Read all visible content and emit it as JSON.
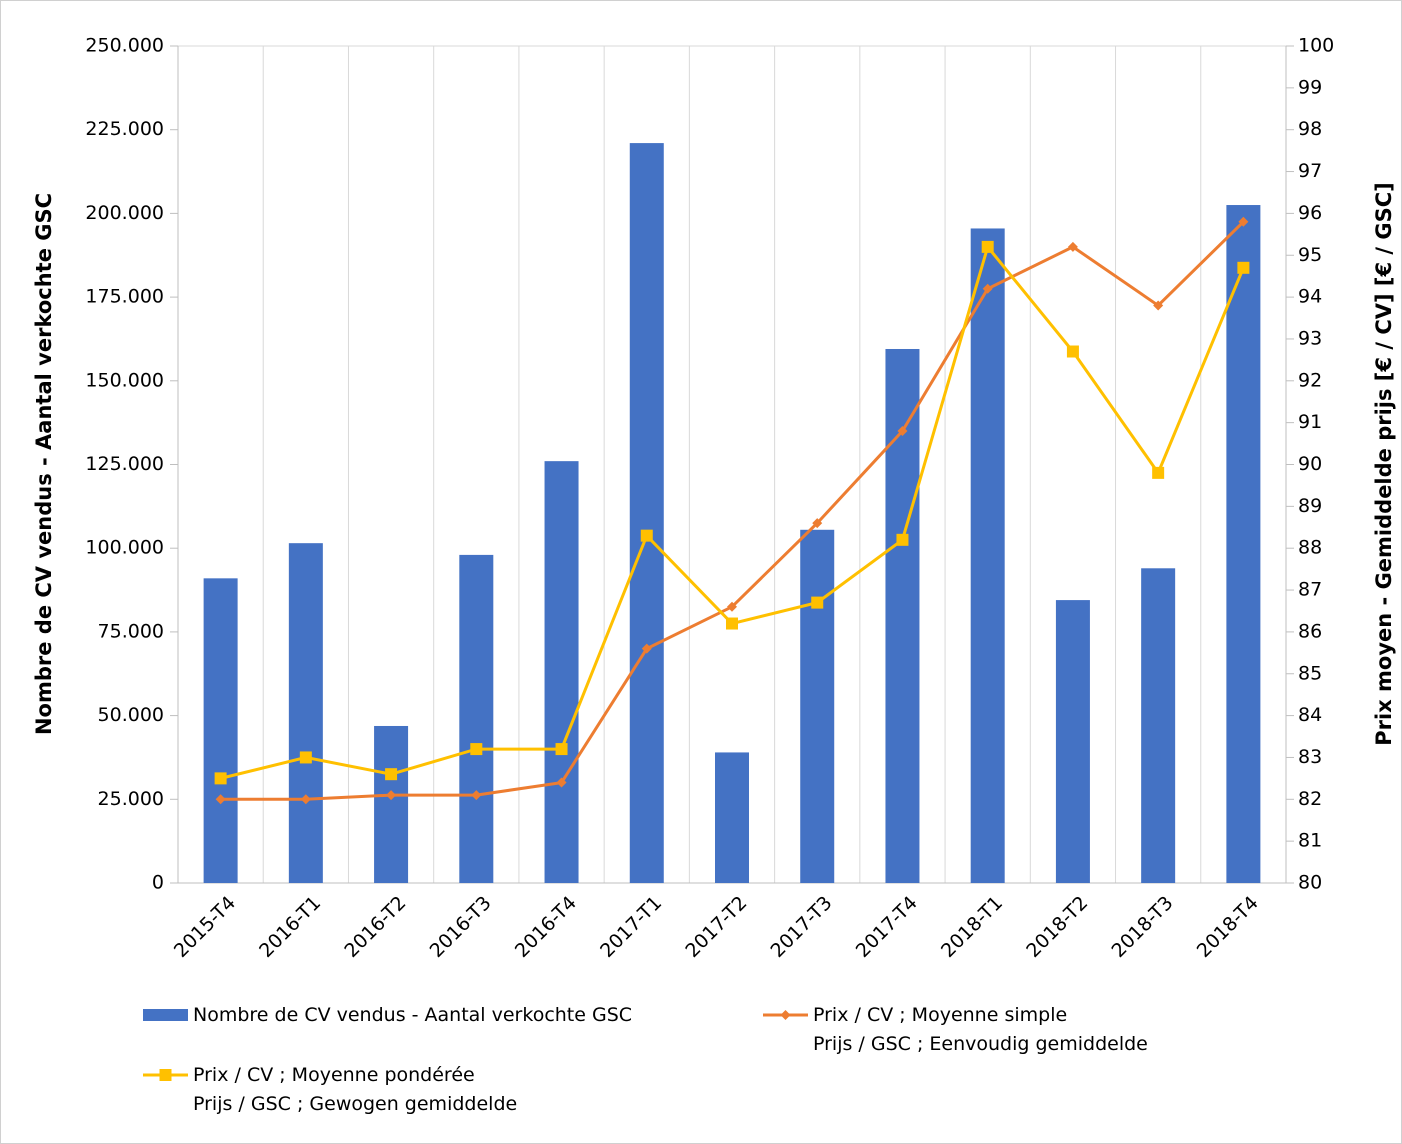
{
  "chart_data": {
    "type": "bar",
    "y_label": "Nombre de CV vendus - Aantal verkochte GSC",
    "y2_label": "Prix moyen - Gemiddelde prijs [€ / CV] [€ / GSC]",
    "categories": [
      "2015-T4",
      "2016-T1",
      "2016-T2",
      "2016-T3",
      "2016-T4",
      "2017-T1",
      "2017-T2",
      "2017-T3",
      "2017-T4",
      "2018-T1",
      "2018-T2",
      "2018-T3",
      "2018-T4"
    ],
    "series": [
      {
        "name": "Nombre de CV vendus - Aantal verkochte GSC",
        "type": "bar",
        "color": "#4472c4",
        "values": [
          91000,
          101500,
          46900,
          98000,
          126000,
          221000,
          39000,
          105500,
          159500,
          195500,
          84500,
          94000,
          202500
        ]
      },
      {
        "name": "Prix / CV ; Moyenne simple\nPrijs / GSC ; Eenvoudig gemiddelde",
        "type": "line",
        "axis": "y2",
        "marker": "diamond",
        "color": "#ed7d31",
        "values": [
          82.0,
          82.0,
          82.1,
          82.1,
          82.4,
          85.6,
          86.6,
          88.6,
          90.8,
          94.2,
          95.2,
          93.8,
          95.8
        ]
      },
      {
        "name": "Prix / CV ; Moyenne pondérée\nPrijs / GSC ; Gewogen gemiddelde",
        "type": "line",
        "axis": "y2",
        "marker": "square",
        "color": "#ffc000",
        "values": [
          82.5,
          83.0,
          82.6,
          83.2,
          83.2,
          88.3,
          86.2,
          86.7,
          88.2,
          95.2,
          92.7,
          89.8,
          94.7
        ]
      }
    ],
    "ylim": [
      0,
      250000
    ],
    "yticks": [
      0,
      {
        "value": 25000,
        "label": "25.000"
      },
      {
        "value": 50000,
        "label": "50.000"
      },
      {
        "value": 75000,
        "label": "75.000"
      },
      {
        "value": 100000,
        "label": "100.000"
      },
      {
        "value": 125000,
        "label": "125.000"
      },
      {
        "value": 150000,
        "label": "150.000"
      },
      {
        "value": 175000,
        "label": "175.000"
      },
      {
        "value": 200000,
        "label": "200.000"
      },
      {
        "value": 225000,
        "label": "225.000"
      },
      {
        "value": 250000,
        "label": "250.000"
      }
    ],
    "y2lim": [
      80,
      100
    ],
    "y2ticks": [
      80,
      81,
      82,
      83,
      84,
      85,
      86,
      87,
      88,
      89,
      90,
      91,
      92,
      93,
      94,
      95,
      96,
      97,
      98,
      99,
      100
    ],
    "grid": false
  }
}
